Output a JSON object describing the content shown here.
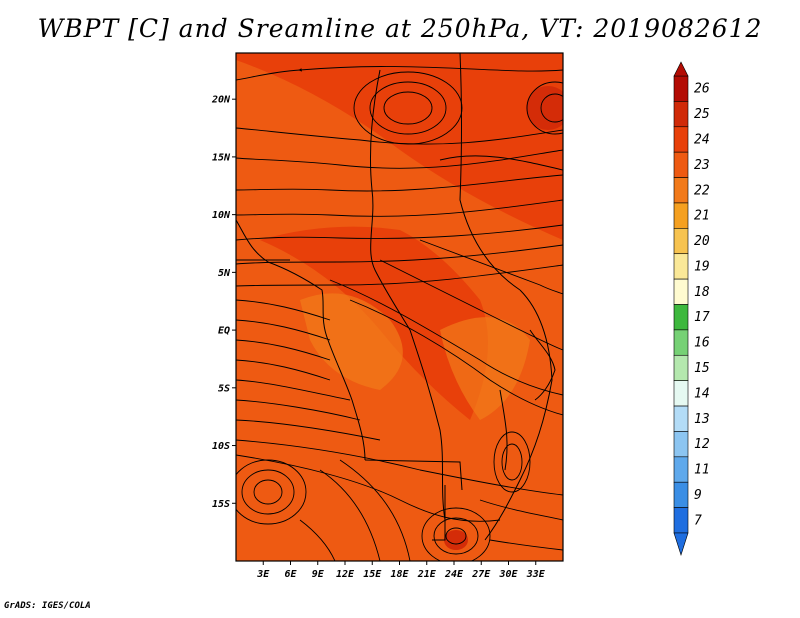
{
  "title": "WBPT [C] and Sreamline at 250hPa, VT: 2019082612",
  "credit": "GrADS: IGES/COLA",
  "map": {
    "variable": "Wet-bulb potential temperature",
    "units": "C",
    "level": "250hPa",
    "valid_time": "2019082612",
    "lon_range": [
      0,
      36
    ],
    "lat_range": [
      -20,
      24
    ],
    "lon_ticks": [
      "3E",
      "6E",
      "9E",
      "12E",
      "15E",
      "18E",
      "21E",
      "24E",
      "27E",
      "30E",
      "33E"
    ],
    "lat_ticks": [
      "20N",
      "15N",
      "10N",
      "5N",
      "EQ",
      "5S",
      "10S",
      "15S"
    ],
    "fill_colors": {
      "base": "#ee5a12",
      "warm": "#e8400a",
      "hot": "#d42c08",
      "cool": "#f27a1a"
    }
  },
  "colorbar": {
    "labels": [
      "26",
      "25",
      "24",
      "23",
      "22",
      "21",
      "20",
      "19",
      "18",
      "17",
      "16",
      "15",
      "14",
      "13",
      "12",
      "11",
      "9",
      "7"
    ],
    "colors": [
      "#b30c04",
      "#d02a08",
      "#e8400a",
      "#ee5a12",
      "#f27a1a",
      "#f5a020",
      "#f7c350",
      "#fae898",
      "#fffbd0",
      "#3db83d",
      "#76d175",
      "#b4e8ae",
      "#e6f9f2",
      "#b3dcf7",
      "#8cc5f1",
      "#5fa9ec",
      "#3a8ee5",
      "#1f6ee0"
    ]
  }
}
